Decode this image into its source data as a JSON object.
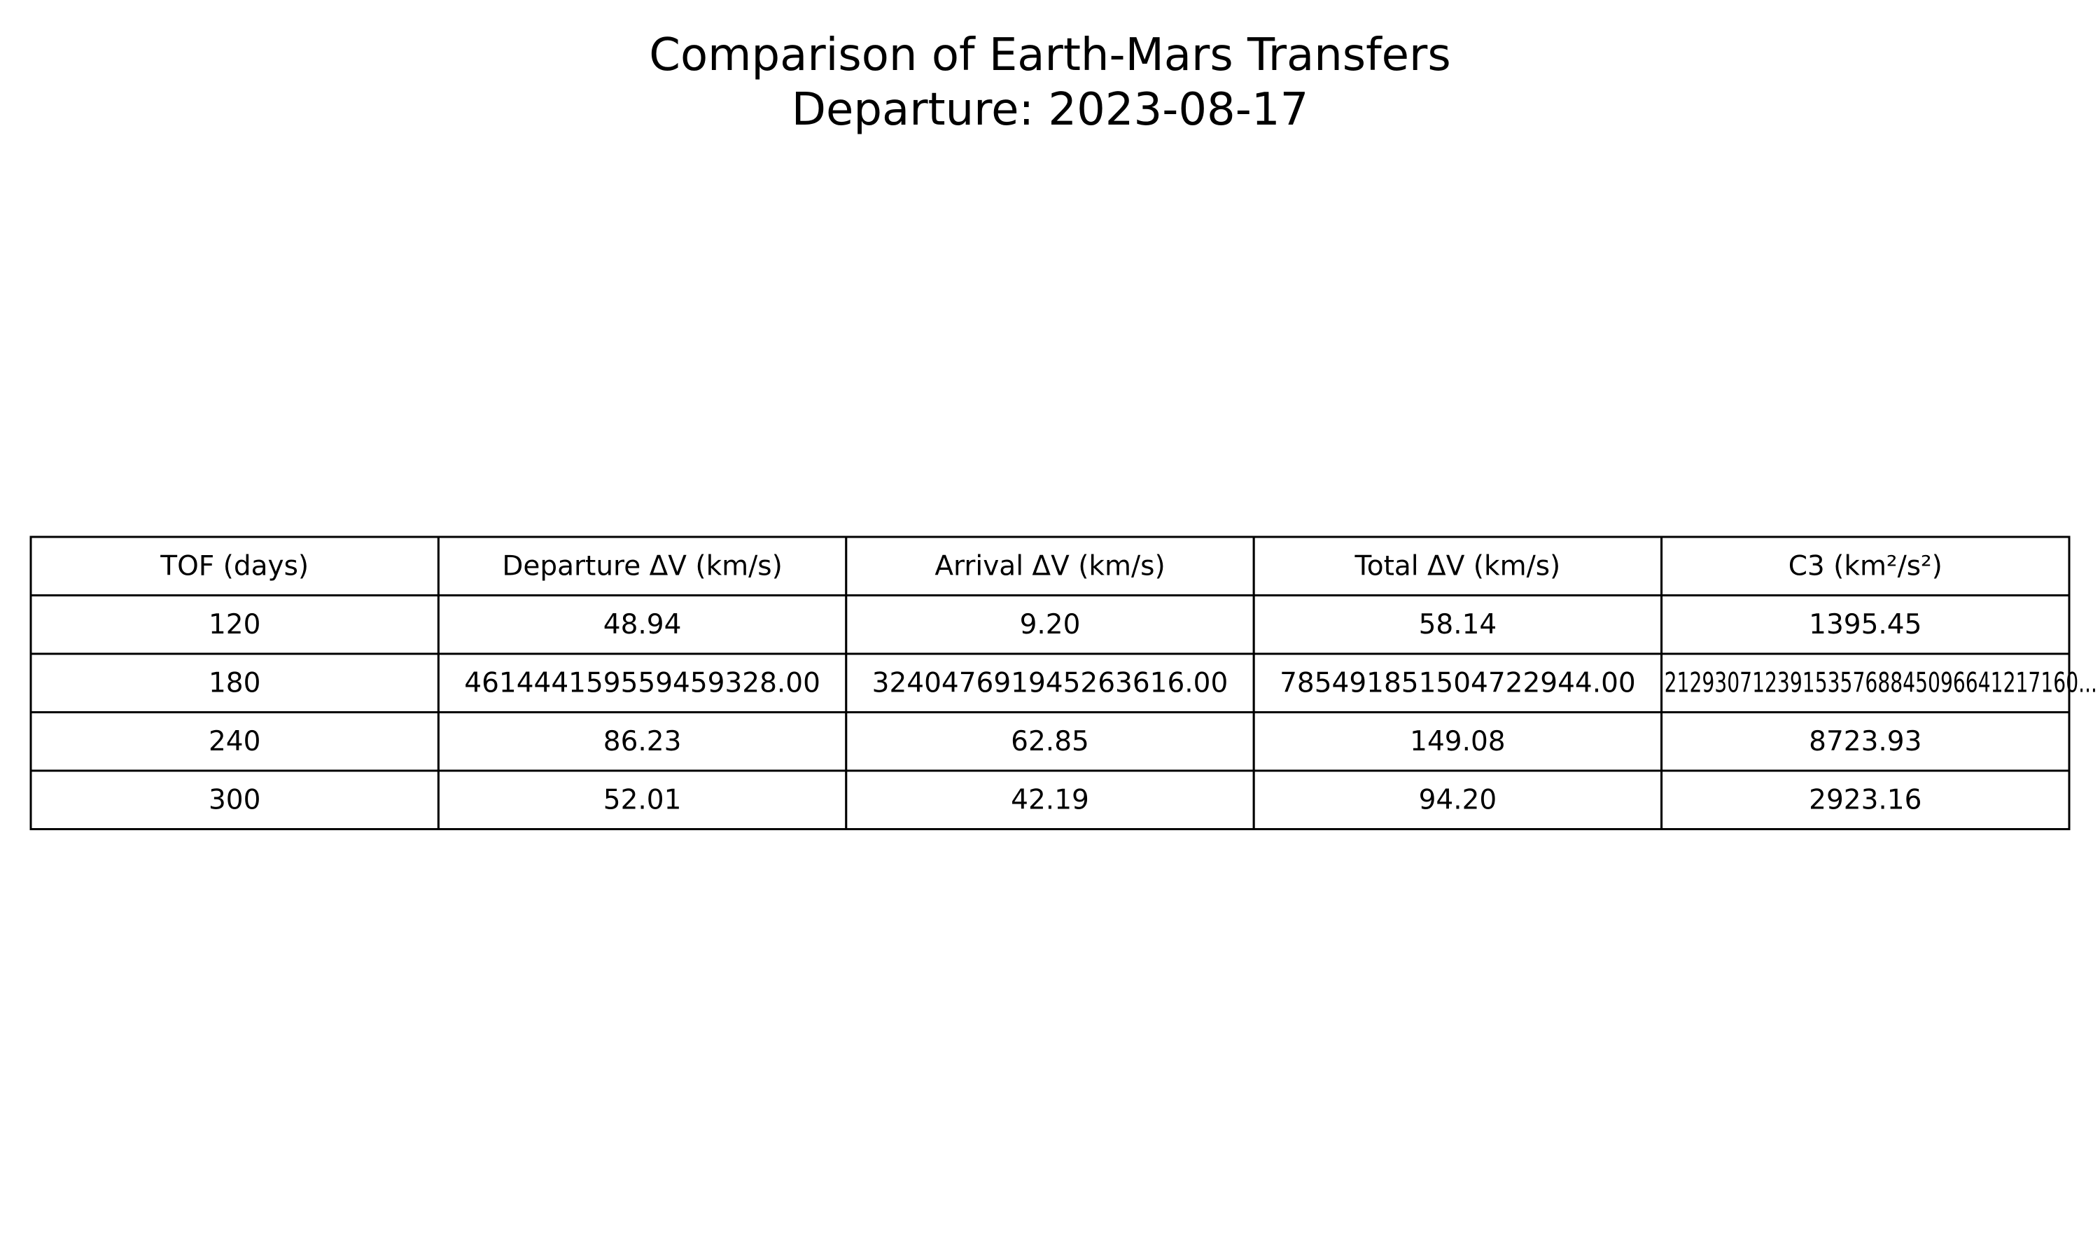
{
  "chart_data": {
    "type": "table",
    "title": "Comparison of Earth-Mars Transfers",
    "subtitle": "Departure: 2023-08-17",
    "columns": [
      "TOF (days)",
      "Departure ΔV (km/s)",
      "Arrival ΔV (km/s)",
      "Total ΔV (km/s)",
      "C3 (km²/s²)"
    ],
    "rows": [
      [
        "120",
        "48.94",
        "9.20",
        "58.14",
        "1395.45"
      ],
      [
        "180",
        "461444159559459328.00",
        "324047691945263616.00",
        "785491851504722944.00",
        "212930712391535768845096641217160..."
      ],
      [
        "240",
        "86.23",
        "62.85",
        "149.08",
        "8723.93"
      ],
      [
        "300",
        "52.01",
        "42.19",
        "94.20",
        "2923.16"
      ]
    ],
    "cell_text_color": "#000000",
    "border_color": "#000000",
    "background_color": "#ffffff"
  }
}
